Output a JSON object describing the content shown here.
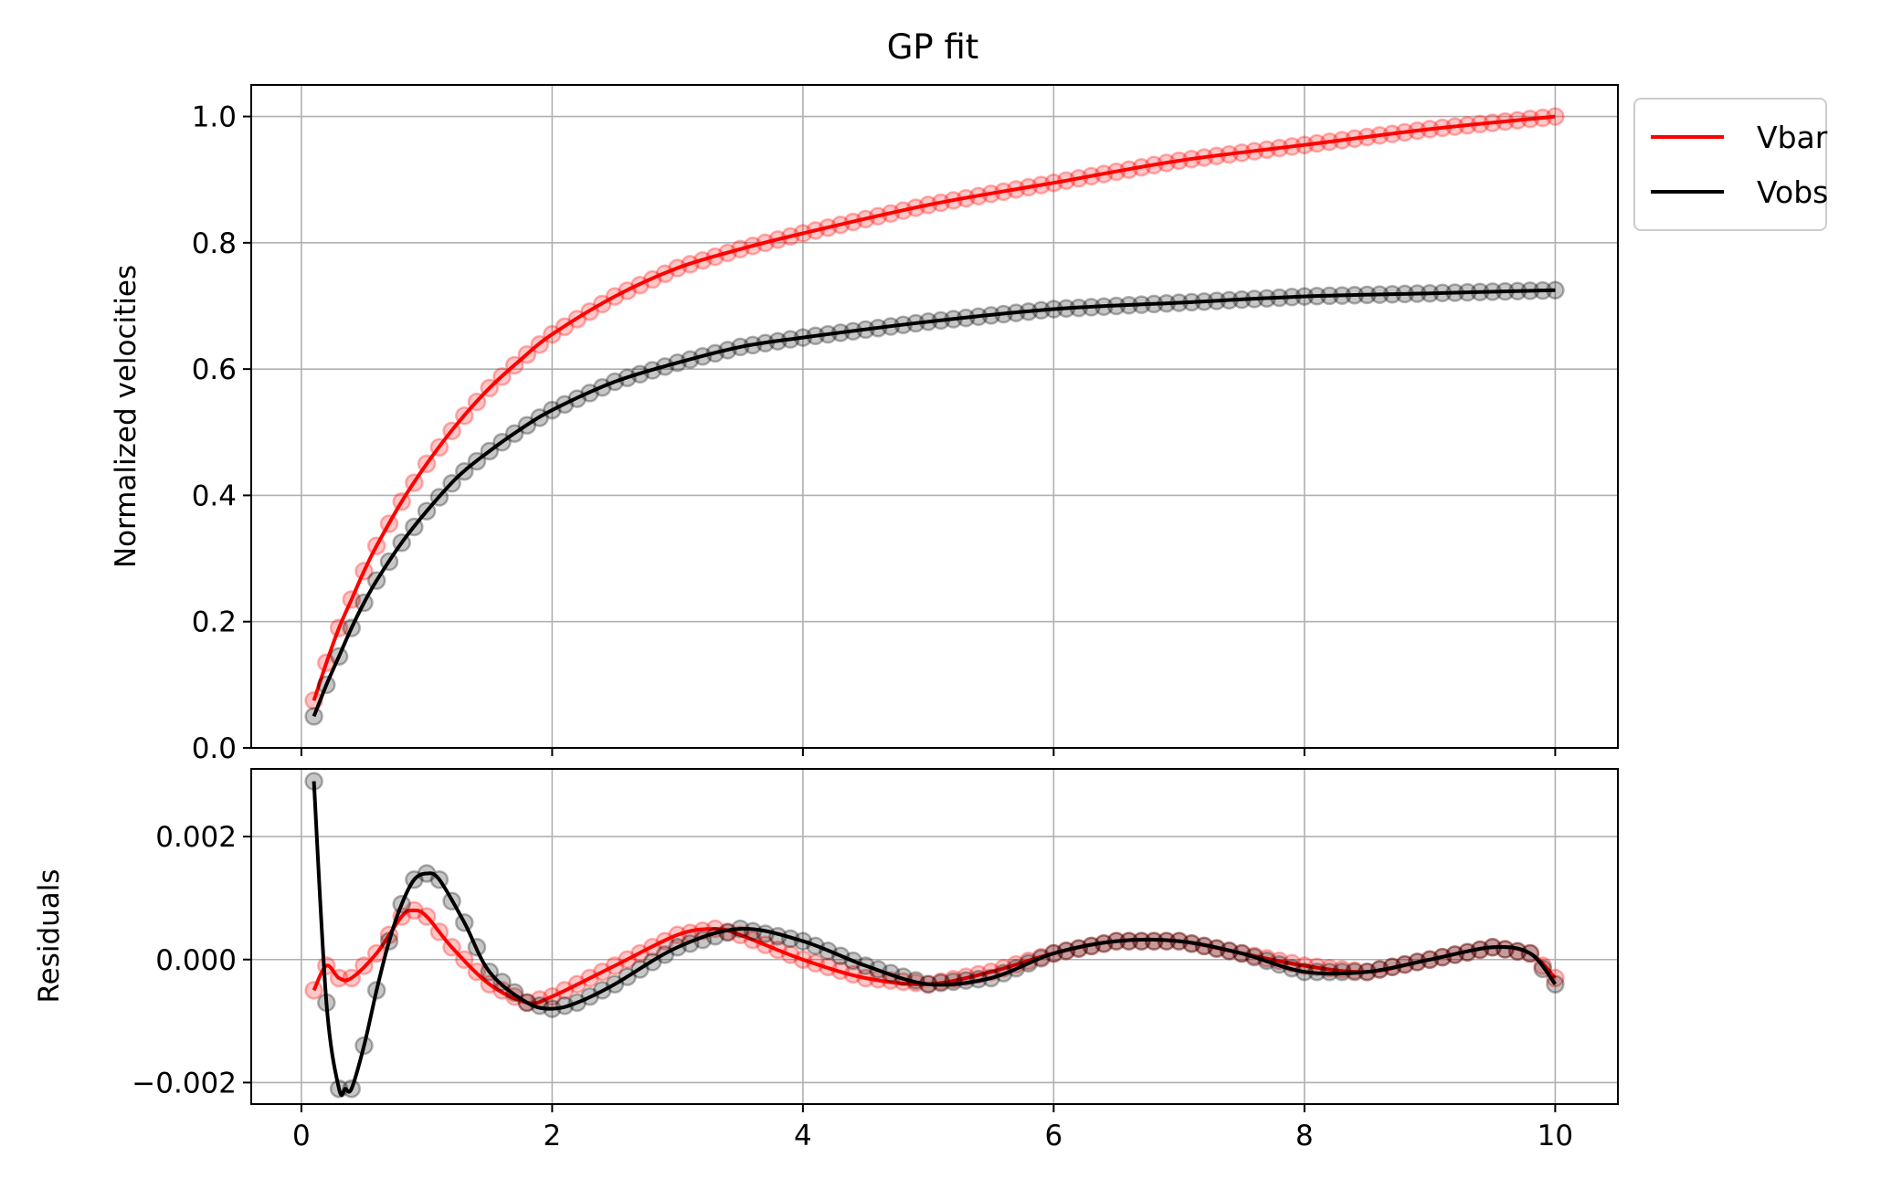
{
  "chart_data": {
    "type": "line",
    "title": "GP fit",
    "legend": {
      "placement": "outside-top-right",
      "entries": [
        {
          "label": "Vbar",
          "color": "#ff0000"
        },
        {
          "label": "Vobs",
          "color": "#000000"
        }
      ]
    },
    "grid": true,
    "xlim": [
      -0.4,
      10.5
    ],
    "x_ticks": [
      0,
      2,
      4,
      6,
      8,
      10
    ],
    "x_tick_labels": [
      "0",
      "2",
      "4",
      "6",
      "8",
      "10"
    ],
    "panels": [
      {
        "id": "velocities",
        "ylabel": "Normalized velocities",
        "ylim": [
          0.0,
          1.05
        ],
        "y_ticks": [
          0.0,
          0.2,
          0.4,
          0.6,
          0.8,
          1.0
        ],
        "y_tick_labels": [
          "0.0",
          "0.2",
          "0.4",
          "0.6",
          "0.8",
          "1.0"
        ],
        "series": [
          {
            "name": "Vbar",
            "color": "#ff0000",
            "x": [
              0.1,
              0.2,
              0.3,
              0.4,
              0.5,
              0.6,
              0.8,
              1.0,
              1.25,
              1.5,
              1.75,
              2.0,
              2.5,
              3.0,
              3.5,
              4.0,
              5.0,
              6.0,
              7.0,
              8.0,
              9.0,
              10.0
            ],
            "y": [
              0.075,
              0.135,
              0.19,
              0.235,
              0.28,
              0.32,
              0.39,
              0.45,
              0.515,
              0.57,
              0.615,
              0.655,
              0.715,
              0.76,
              0.79,
              0.815,
              0.86,
              0.895,
              0.93,
              0.955,
              0.98,
              1.0
            ]
          },
          {
            "name": "Vobs",
            "color": "#000000",
            "x": [
              0.1,
              0.2,
              0.3,
              0.4,
              0.5,
              0.6,
              0.8,
              1.0,
              1.25,
              1.5,
              1.75,
              2.0,
              2.5,
              3.0,
              3.5,
              4.0,
              5.0,
              6.0,
              7.0,
              8.0,
              9.0,
              10.0
            ],
            "y": [
              0.05,
              0.1,
              0.145,
              0.19,
              0.23,
              0.265,
              0.325,
              0.375,
              0.43,
              0.47,
              0.505,
              0.535,
              0.58,
              0.61,
              0.635,
              0.65,
              0.675,
              0.695,
              0.705,
              0.715,
              0.72,
              0.725
            ]
          }
        ]
      },
      {
        "id": "residuals",
        "ylabel": "Residuals",
        "ylim": [
          -0.00235,
          0.0031
        ],
        "y_ticks": [
          -0.002,
          0.0,
          0.002
        ],
        "y_tick_labels": [
          "−0.002",
          "0.000",
          "0.002"
        ],
        "series": [
          {
            "name": "Vbar",
            "color": "#ff0000",
            "x": [
              0.1,
              0.2,
              0.3,
              0.4,
              0.6,
              0.8,
              0.9,
              1.0,
              1.2,
              1.5,
              1.8,
              2.0,
              2.5,
              3.0,
              3.3,
              3.5,
              4.0,
              4.5,
              5.0,
              5.5,
              6.0,
              6.5,
              7.0,
              7.5,
              8.0,
              8.5,
              9.0,
              9.5,
              9.8,
              10.0
            ],
            "y": [
              -0.0005,
              -0.0001,
              -0.0003,
              -0.0003,
              0.0001,
              0.0007,
              0.0008,
              0.0007,
              0.0002,
              -0.0004,
              -0.0007,
              -0.0006,
              -0.0001,
              0.0004,
              0.0005,
              0.0004,
              0.0,
              -0.0003,
              -0.0004,
              -0.0002,
              0.0001,
              0.0003,
              0.0003,
              0.0001,
              -0.0001,
              -0.0002,
              0.0,
              0.0002,
              0.0001,
              -0.0003
            ]
          },
          {
            "name": "Vobs",
            "color": "#000000",
            "x": [
              0.1,
              0.2,
              0.3,
              0.35,
              0.4,
              0.5,
              0.6,
              0.7,
              0.8,
              0.9,
              1.0,
              1.1,
              1.3,
              1.5,
              1.8,
              2.0,
              2.2,
              2.5,
              3.0,
              3.5,
              4.0,
              4.5,
              5.0,
              5.5,
              6.0,
              6.5,
              7.0,
              7.5,
              8.0,
              8.5,
              9.0,
              9.5,
              9.8,
              10.0
            ],
            "y": [
              0.0029,
              -0.0007,
              -0.0021,
              -0.0021,
              -0.0021,
              -0.0014,
              -0.0005,
              0.0003,
              0.0009,
              0.0013,
              0.0014,
              0.0013,
              0.0006,
              -0.0002,
              -0.0007,
              -0.0008,
              -0.0007,
              -0.0004,
              0.0002,
              0.0005,
              0.0003,
              -0.0001,
              -0.0004,
              -0.0003,
              0.0001,
              0.0003,
              0.0003,
              0.0001,
              -0.0002,
              -0.0002,
              0.0,
              0.0002,
              0.0001,
              -0.0004
            ]
          }
        ]
      }
    ]
  }
}
